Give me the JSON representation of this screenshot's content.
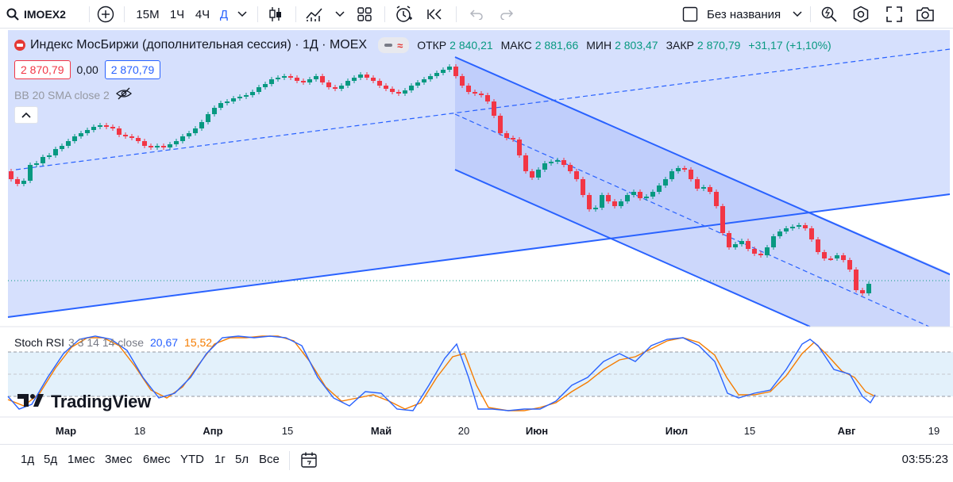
{
  "toolbar": {
    "symbol": "IMOEX2",
    "timeframes": [
      "15M",
      "1Ч",
      "4Ч",
      "Д"
    ],
    "layout_name": "Без названия"
  },
  "legend": {
    "title": "Индекс МосБиржи (дополнительная сессия) · 1Д · MOEX",
    "open_label": "ОТКР",
    "open": "2 840,21",
    "high_label": "МАКС",
    "high": "2 881,66",
    "low_label": "МИН",
    "low": "2 803,47",
    "close_label": "ЗАКР",
    "close": "2 870,79",
    "change": "+31,17 (+1,10%)",
    "sell_price": "2 870,79",
    "spread": "0,00",
    "buy_price": "2 870,79",
    "bb_label": "BB 20 SMA close 2"
  },
  "stoch": {
    "name": "Stoch RSI",
    "params": "3 3 14 14 close",
    "k_value": "20,67",
    "d_value": "15,52"
  },
  "watermark": "TradingView",
  "x_axis": [
    {
      "label": "Мар",
      "bold": true
    },
    {
      "label": "18",
      "bold": false
    },
    {
      "label": "Апр",
      "bold": true
    },
    {
      "label": "15",
      "bold": false
    },
    {
      "label": "Май",
      "bold": true
    },
    {
      "label": "20",
      "bold": false
    },
    {
      "label": "Июн",
      "bold": true
    },
    {
      "label": "Июл",
      "bold": true
    },
    {
      "label": "15",
      "bold": false
    },
    {
      "label": "Авг",
      "bold": true
    },
    {
      "label": "19",
      "bold": false
    }
  ],
  "ranges": [
    "1д",
    "5д",
    "1мес",
    "3мес",
    "6мес",
    "YTD",
    "1г",
    "5л",
    "Все"
  ],
  "clock": "03:55:23",
  "colors": {
    "up": "#089981",
    "down": "#f23645",
    "channel_line": "#2962ff",
    "stoch_k": "#2962ff",
    "stoch_d": "#f57c00"
  },
  "icons": [
    "search-icon",
    "add-icon",
    "candles-icon",
    "indicators-icon",
    "templates-icon",
    "alert-icon",
    "replay-icon",
    "undo-icon",
    "redo-icon",
    "layout-icon",
    "quick-search-icon",
    "settings-icon",
    "fullscreen-icon",
    "camera-icon",
    "calendar-icon"
  ]
}
